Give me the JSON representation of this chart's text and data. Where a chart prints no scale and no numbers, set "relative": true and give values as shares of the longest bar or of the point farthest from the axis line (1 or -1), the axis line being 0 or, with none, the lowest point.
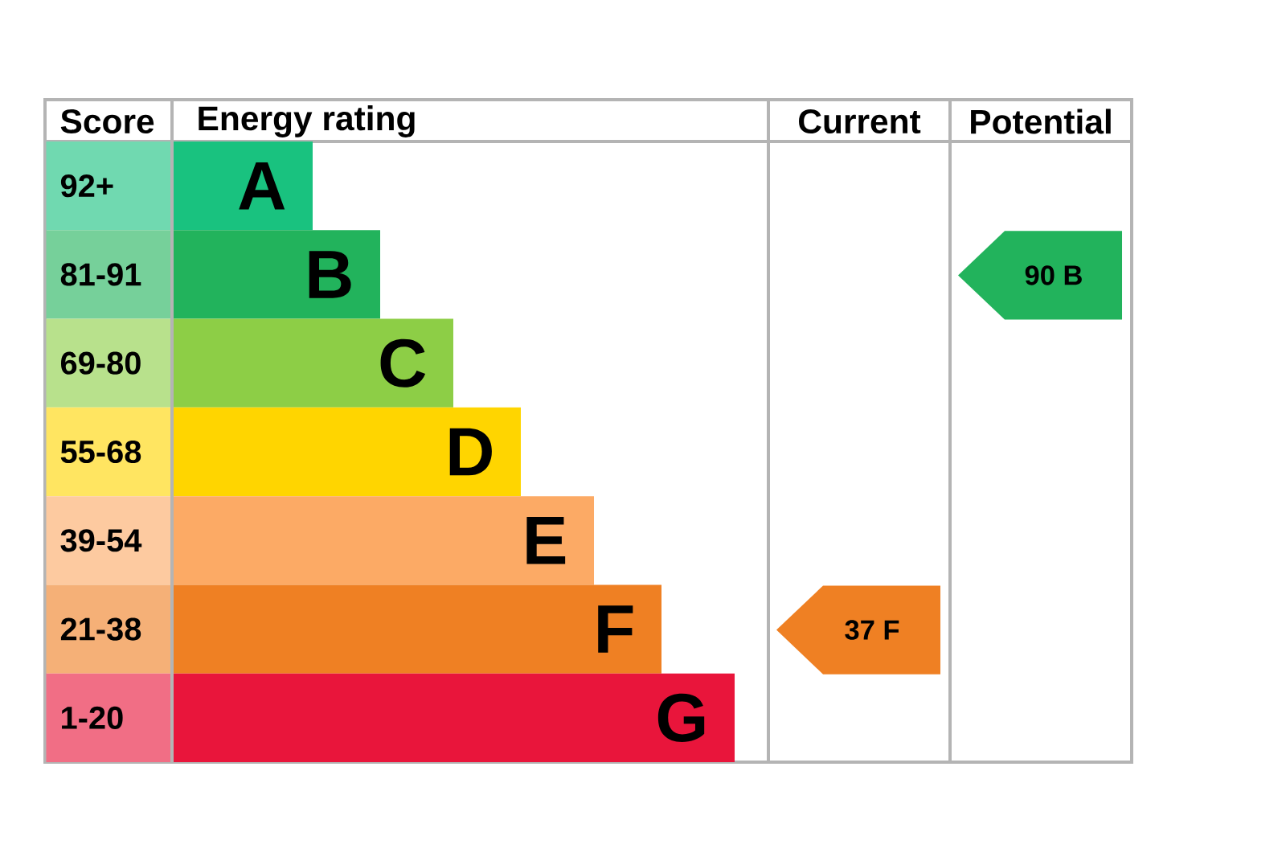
{
  "chart_data": {
    "type": "bar",
    "orientation": "horizontal",
    "relative": true,
    "xlabel": "Energy rating",
    "ylabel": "Score",
    "categories": [
      "92+",
      "81-91",
      "69-80",
      "55-68",
      "39-54",
      "21-38",
      "1-20"
    ],
    "values": [
      0.25,
      0.37,
      0.5,
      0.62,
      0.75,
      0.87,
      1
    ],
    "colors": [
      "#19c27f",
      "#22b35c",
      "#8dce46",
      "#ffd500",
      "#fcaa65",
      "#ef8023",
      "#e9153b"
    ],
    "annotations": [
      "Current",
      "Potential",
      "37 F",
      "90 B",
      {
        "text": "A",
        "x": 0.25,
        "y": "92+"
      },
      {
        "text": "B",
        "x": 0.37,
        "y": "81-91"
      },
      {
        "text": "C",
        "x": 0.5,
        "y": "69-80"
      },
      {
        "text": "D",
        "x": 0.62,
        "y": "55-68"
      },
      {
        "text": "E",
        "x": 0.75,
        "y": "39-54"
      },
      {
        "text": "F",
        "x": 0.87,
        "y": "21-38"
      },
      {
        "text": "G",
        "x": 1,
        "y": "1-20"
      }
    ]
  }
}
